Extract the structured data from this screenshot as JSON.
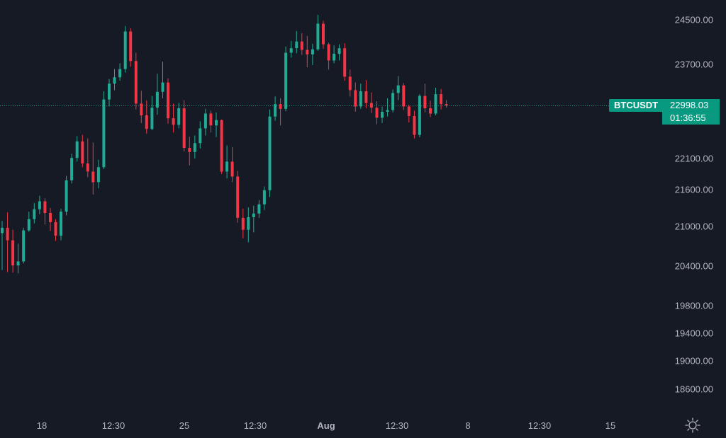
{
  "colors": {
    "background": "#161a25",
    "up": "#22ab94",
    "down": "#f23645",
    "text": "#b2b5be",
    "price_line": "#089981"
  },
  "price_label": {
    "symbol": "BTCUSDT",
    "price": "22998.03",
    "countdown": "01:36:55"
  },
  "settings_icon": "gear-icon",
  "chart_data": {
    "type": "candlestick",
    "y_axis": {
      "ticks": [
        24500,
        23700,
        22100,
        21600,
        21000,
        20400,
        19800,
        19400,
        19000,
        18600
      ],
      "tick_labels": [
        "24500.00",
        "23700.00",
        "22100.00",
        "21600.00",
        "21000.00",
        "20400.00",
        "19800.00",
        "19400.00",
        "19000.00",
        "18600.00"
      ]
    },
    "x_axis": {
      "labels": [
        "18",
        "12:30",
        "25",
        "12:30",
        "Aug",
        "12:30",
        "8",
        "12:30",
        "15"
      ],
      "bold": [
        false,
        false,
        false,
        false,
        true,
        false,
        false,
        false,
        false
      ]
    },
    "current_price": 22998.03,
    "candles": [
      [
        20900,
        21090,
        20340,
        20980
      ],
      [
        20980,
        21230,
        20310,
        20790
      ],
      [
        20790,
        20950,
        20300,
        20410
      ],
      [
        20410,
        20740,
        20290,
        20470
      ],
      [
        20470,
        20980,
        20440,
        20940
      ],
      [
        20940,
        21240,
        20920,
        21120
      ],
      [
        21120,
        21380,
        21050,
        21280
      ],
      [
        21280,
        21500,
        21200,
        21410
      ],
      [
        21410,
        21460,
        21030,
        21220
      ],
      [
        21220,
        21300,
        20930,
        21070
      ],
      [
        21070,
        21120,
        20780,
        20860
      ],
      [
        20860,
        21290,
        20790,
        21240
      ],
      [
        21240,
        21820,
        21180,
        21750
      ],
      [
        21750,
        22180,
        21700,
        22110
      ],
      [
        22110,
        22480,
        22050,
        22390
      ],
      [
        22390,
        22500,
        21960,
        22020
      ],
      [
        22020,
        22440,
        21800,
        21890
      ],
      [
        21890,
        22370,
        21520,
        21720
      ],
      [
        21720,
        22080,
        21620,
        21960
      ],
      [
        21960,
        23240,
        21930,
        23100
      ],
      [
        23100,
        23450,
        22980,
        23370
      ],
      [
        23370,
        23620,
        23260,
        23480
      ],
      [
        23480,
        23720,
        23420,
        23620
      ],
      [
        23620,
        24390,
        23560,
        24290
      ],
      [
        24290,
        24350,
        23660,
        23760
      ],
      [
        23760,
        23910,
        22930,
        23030
      ],
      [
        23030,
        23250,
        22700,
        22830
      ],
      [
        22830,
        23080,
        22520,
        22600
      ],
      [
        22600,
        23160,
        22580,
        22960
      ],
      [
        22960,
        23540,
        22840,
        23230
      ],
      [
        23230,
        23750,
        23120,
        23390
      ],
      [
        23390,
        23460,
        22690,
        22780
      ],
      [
        22780,
        23030,
        22540,
        22670
      ],
      [
        22670,
        23040,
        22610,
        22950
      ],
      [
        22950,
        23090,
        22220,
        22280
      ],
      [
        22280,
        22470,
        21990,
        22210
      ],
      [
        22210,
        22490,
        22100,
        22360
      ],
      [
        22360,
        22730,
        22270,
        22610
      ],
      [
        22610,
        22940,
        22490,
        22860
      ],
      [
        22860,
        22910,
        22540,
        22660
      ],
      [
        22660,
        22880,
        22460,
        22750
      ],
      [
        22750,
        22760,
        21850,
        21890
      ],
      [
        21890,
        22320,
        21780,
        22050
      ],
      [
        22050,
        22290,
        21720,
        21810
      ],
      [
        21810,
        21900,
        21060,
        21140
      ],
      [
        21140,
        21290,
        20820,
        20950
      ],
      [
        20950,
        21310,
        20760,
        21150
      ],
      [
        21150,
        21340,
        20910,
        21210
      ],
      [
        21210,
        21430,
        21140,
        21360
      ],
      [
        21360,
        21650,
        21270,
        21590
      ],
      [
        21590,
        22930,
        21480,
        22810
      ],
      [
        22810,
        23150,
        22740,
        23020
      ],
      [
        23020,
        23120,
        22660,
        22940
      ],
      [
        22940,
        24020,
        22900,
        23910
      ],
      [
        23910,
        24120,
        23820,
        23990
      ],
      [
        23990,
        24300,
        23900,
        24110
      ],
      [
        24110,
        24260,
        23870,
        23960
      ],
      [
        23960,
        24210,
        23650,
        23880
      ],
      [
        23880,
        24070,
        23690,
        23970
      ],
      [
        23970,
        24590,
        23940,
        24430
      ],
      [
        24430,
        24480,
        23980,
        24060
      ],
      [
        24060,
        24090,
        23610,
        23770
      ],
      [
        23770,
        24040,
        23720,
        23890
      ],
      [
        23890,
        24060,
        23770,
        23990
      ],
      [
        23990,
        24080,
        23420,
        23490
      ],
      [
        23490,
        23610,
        23150,
        23260
      ],
      [
        23260,
        23390,
        22890,
        22980
      ],
      [
        22980,
        23370,
        22940,
        23240
      ],
      [
        23240,
        23430,
        22950,
        23040
      ],
      [
        23040,
        23220,
        22870,
        22960
      ],
      [
        22960,
        23070,
        22680,
        22790
      ],
      [
        22790,
        22980,
        22700,
        22890
      ],
      [
        22890,
        23120,
        22810,
        22920
      ],
      [
        22920,
        23270,
        22880,
        23210
      ],
      [
        23210,
        23500,
        23090,
        23340
      ],
      [
        23340,
        23380,
        22920,
        22980
      ],
      [
        22980,
        23010,
        22710,
        22820
      ],
      [
        22820,
        22910,
        22440,
        22500
      ],
      [
        22500,
        23190,
        22460,
        23160
      ],
      [
        23160,
        23370,
        22880,
        22950
      ],
      [
        22950,
        23080,
        22800,
        22860
      ],
      [
        22860,
        23300,
        22830,
        23190
      ],
      [
        23190,
        23280,
        22930,
        23020
      ],
      [
        23020,
        23090,
        22960,
        22998
      ]
    ]
  }
}
